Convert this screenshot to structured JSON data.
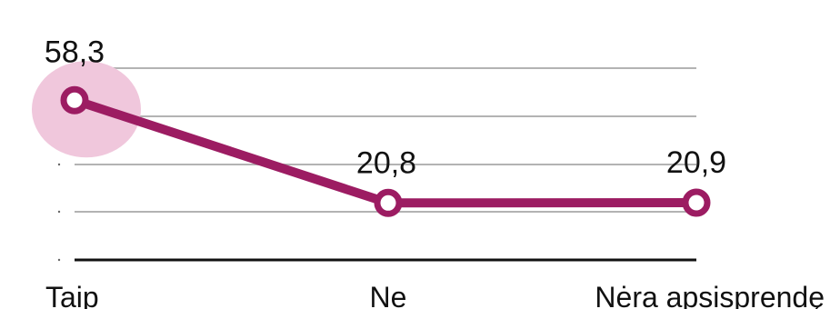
{
  "chart_data": {
    "type": "line",
    "categories": [
      "Taip",
      "Ne",
      "Nėra apsisprendę"
    ],
    "series": [
      {
        "values": [
          58.3,
          20.8,
          20.9
        ]
      }
    ],
    "data_labels": [
      "58,3",
      "20,8",
      "20,9"
    ],
    "title": "",
    "xlabel": "",
    "ylabel": "",
    "ylim": [
      0,
      70
    ],
    "grid": true,
    "highlight_index": 0
  },
  "colors": {
    "series": "#9c1c62",
    "highlight": "#f0c7dc",
    "grid": "#b3b3b3",
    "axis": "#111111"
  }
}
